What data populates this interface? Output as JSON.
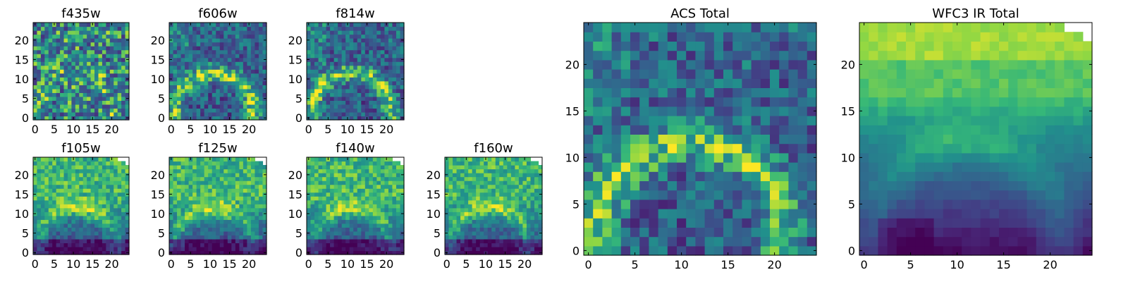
{
  "chart_data": {
    "type": "heatmap",
    "colormap": "viridis",
    "grid": false,
    "panels": [
      {
        "id": "f435w",
        "title": "f435w",
        "pattern": "noise",
        "xlim": [
          0,
          25
        ],
        "ylim": [
          0,
          25
        ],
        "xticks": [
          0,
          5,
          10,
          15,
          20
        ],
        "yticks": [
          0,
          5,
          10,
          15,
          20
        ],
        "masked_corner": false
      },
      {
        "id": "f606w",
        "title": "f606w",
        "pattern": "arc",
        "xlim": [
          0,
          25
        ],
        "ylim": [
          0,
          25
        ],
        "xticks": [
          0,
          5,
          10,
          15,
          20
        ],
        "yticks": [
          0,
          5,
          10,
          15,
          20
        ],
        "masked_corner": false
      },
      {
        "id": "f814w",
        "title": "f814w",
        "pattern": "arc",
        "xlim": [
          0,
          25
        ],
        "ylim": [
          0,
          25
        ],
        "xticks": [
          0,
          5,
          10,
          15,
          20
        ],
        "yticks": [
          0,
          5,
          10,
          15,
          20
        ],
        "masked_corner": false
      },
      {
        "id": "f105w",
        "title": "f105w",
        "pattern": "ir",
        "xlim": [
          0,
          25
        ],
        "ylim": [
          0,
          25
        ],
        "xticks": [
          0,
          5,
          10,
          15,
          20
        ],
        "yticks": [
          0,
          5,
          10,
          15,
          20
        ],
        "masked_corner": true
      },
      {
        "id": "f125w",
        "title": "f125w",
        "pattern": "ir",
        "xlim": [
          0,
          25
        ],
        "ylim": [
          0,
          25
        ],
        "xticks": [
          0,
          5,
          10,
          15,
          20
        ],
        "yticks": [
          0,
          5,
          10,
          15,
          20
        ],
        "masked_corner": true
      },
      {
        "id": "f140w",
        "title": "f140w",
        "pattern": "ir",
        "xlim": [
          0,
          25
        ],
        "ylim": [
          0,
          25
        ],
        "xticks": [
          0,
          5,
          10,
          15,
          20
        ],
        "yticks": [
          0,
          5,
          10,
          15,
          20
        ],
        "masked_corner": true
      },
      {
        "id": "f160w",
        "title": "f160w",
        "pattern": "ir",
        "xlim": [
          0,
          25
        ],
        "ylim": [
          0,
          25
        ],
        "xticks": [
          0,
          5,
          10,
          15,
          20
        ],
        "yticks": [
          0,
          5,
          10,
          15,
          20
        ],
        "masked_corner": true
      },
      {
        "id": "acs_total",
        "title": "ACS Total",
        "pattern": "arc",
        "xlim": [
          0,
          25
        ],
        "ylim": [
          0,
          25
        ],
        "xticks": [
          0,
          5,
          10,
          15,
          20
        ],
        "yticks": [
          0,
          5,
          10,
          15,
          20
        ],
        "masked_corner": false
      },
      {
        "id": "wfc3_total",
        "title": "WFC3 IR Total",
        "pattern": "smooth",
        "xlim": [
          0,
          25
        ],
        "ylim": [
          0,
          25
        ],
        "xticks": [
          0,
          5,
          10,
          15,
          20
        ],
        "yticks": [
          0,
          5,
          10,
          15,
          20
        ],
        "masked_corner": true
      }
    ]
  }
}
